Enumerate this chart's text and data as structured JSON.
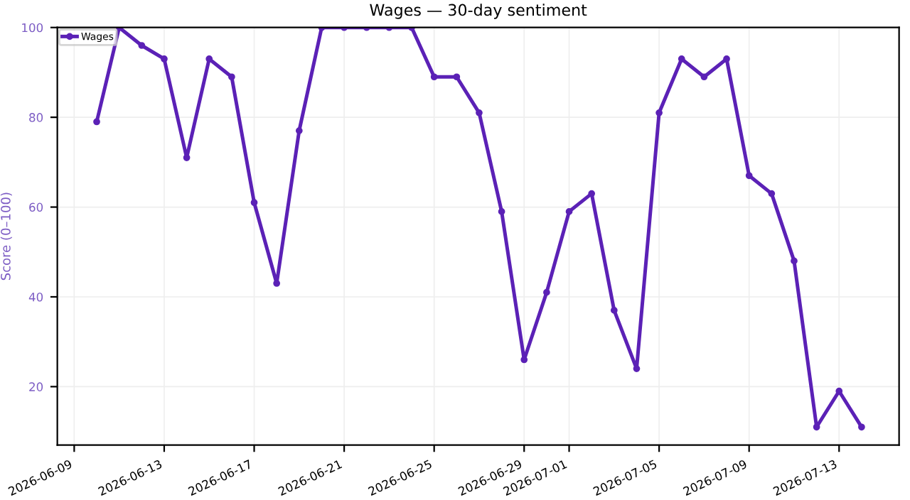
{
  "chart_data": {
    "type": "line",
    "title": "Wages — 30-day sentiment",
    "ylabel": "Score (0–100)",
    "x": [
      "2026-06-10",
      "2026-06-11",
      "2026-06-12",
      "2026-06-13",
      "2026-06-14",
      "2026-06-15",
      "2026-06-16",
      "2026-06-17",
      "2026-06-18",
      "2026-06-19",
      "2026-06-20",
      "2026-06-21",
      "2026-06-22",
      "2026-06-23",
      "2026-06-24",
      "2026-06-25",
      "2026-06-26",
      "2026-06-27",
      "2026-06-28",
      "2026-06-29",
      "2026-06-30",
      "2026-07-01",
      "2026-07-02",
      "2026-07-03",
      "2026-07-04",
      "2026-07-05",
      "2026-07-06",
      "2026-07-07",
      "2026-07-08",
      "2026-07-09",
      "2026-07-10",
      "2026-07-11",
      "2026-07-12",
      "2026-07-13",
      "2026-07-14"
    ],
    "series": [
      {
        "name": "Wages",
        "color": "#5b21b6",
        "values": [
          79,
          100,
          96,
          93,
          71,
          93,
          89,
          61,
          43,
          77,
          100,
          100,
          100,
          100,
          100,
          89,
          89,
          81,
          59,
          26,
          41,
          59,
          63,
          37,
          24,
          81,
          93,
          89,
          93,
          67,
          63,
          48,
          11,
          19,
          11
        ]
      }
    ],
    "xlim": [
      "2026-06-08T06:00",
      "2026-07-15T16:00"
    ],
    "xticks": [
      "2026-06-09",
      "2026-06-13",
      "2026-06-17",
      "2026-06-21",
      "2026-06-25",
      "2026-06-29",
      "2026-07-01",
      "2026-07-05",
      "2026-07-09",
      "2026-07-13"
    ],
    "ylim": [
      7,
      100
    ],
    "yticks": [
      20,
      40,
      60,
      80,
      100
    ],
    "grid": true,
    "legend": "top left",
    "marker": "circle",
    "line_style": "solid"
  }
}
